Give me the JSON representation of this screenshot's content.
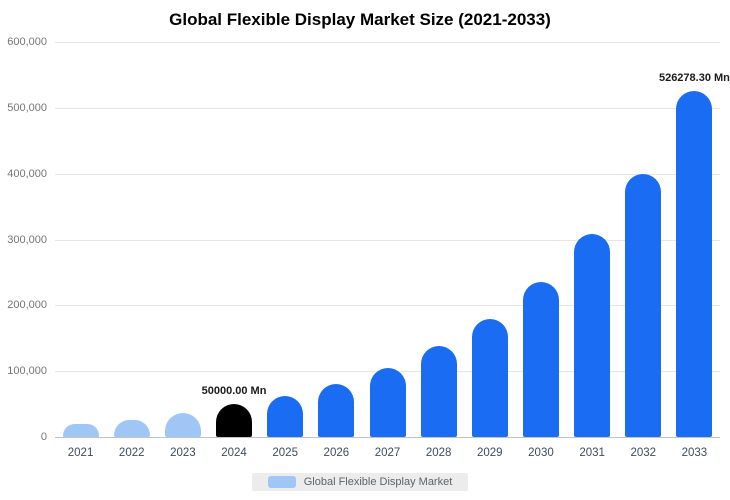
{
  "title": "Global Flexible Display Market Size (2021-2033)",
  "legend": {
    "label": "Global Flexible Display Market",
    "swatch_color": "#a0c6f5"
  },
  "annotations": [
    {
      "category": "2024",
      "text": "50000.00 Mn"
    },
    {
      "category": "2033",
      "text": "526278.30 Mn"
    }
  ],
  "colors": {
    "historical_bar": "#a0c6f5",
    "highlight_bar": "#000000",
    "forecast_bar": "#1a6df2",
    "gridline": "#e6e6e6",
    "axis_label": "#757575"
  },
  "chart_data": {
    "type": "bar",
    "title": "Global Flexible Display Market Size (2021-2033)",
    "series_name": "Global Flexible Display Market",
    "unit": "Mn",
    "categories": [
      "2021",
      "2022",
      "2023",
      "2024",
      "2025",
      "2026",
      "2027",
      "2028",
      "2029",
      "2030",
      "2031",
      "2032",
      "2033"
    ],
    "values": [
      20000,
      26500,
      36000,
      50000,
      62000,
      81000,
      105000,
      138000,
      180000,
      235000,
      308000,
      400000,
      526278.3
    ],
    "bar_colors": [
      "#a0c6f5",
      "#a0c6f5",
      "#a0c6f5",
      "#000000",
      "#1a6df2",
      "#1a6df2",
      "#1a6df2",
      "#1a6df2",
      "#1a6df2",
      "#1a6df2",
      "#1a6df2",
      "#1a6df2",
      "#1a6df2"
    ],
    "xlabel": "",
    "ylabel": "",
    "ylim": [
      0,
      600000
    ],
    "yticks": [
      0,
      100000,
      200000,
      300000,
      400000,
      500000,
      600000
    ],
    "ytick_labels": [
      "0",
      "100,000",
      "200,000",
      "300,000",
      "400,000",
      "500,000",
      "600,000"
    ],
    "grid": true,
    "legend_position": "bottom"
  }
}
